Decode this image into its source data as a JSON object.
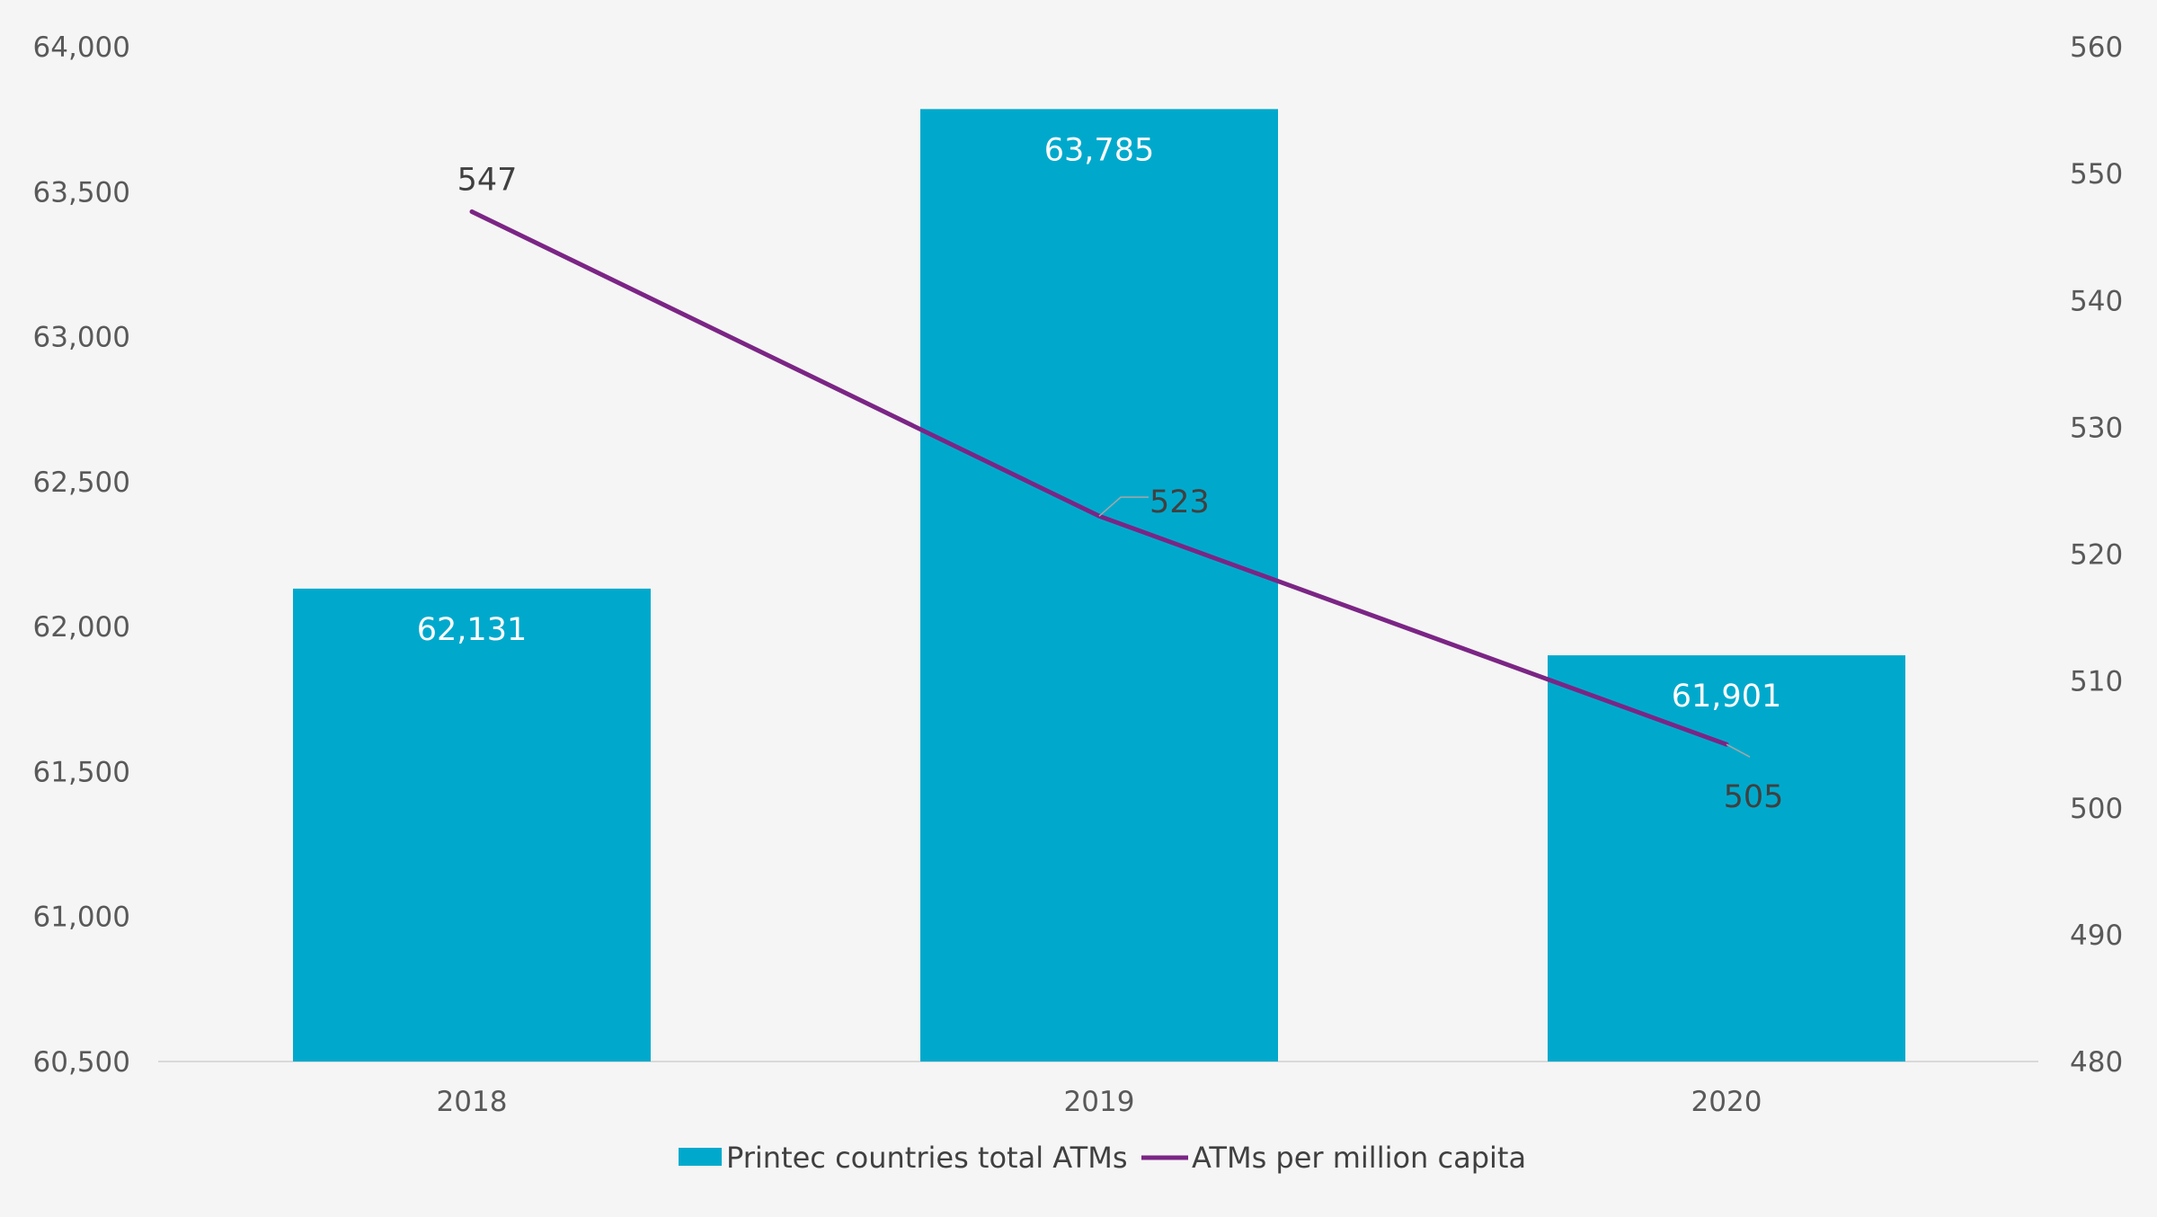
{
  "chart_data": {
    "type": "bar",
    "categories": [
      "2018",
      "2019",
      "2020"
    ],
    "series": [
      {
        "name": "Printec countries total ATMs",
        "type": "bar",
        "axis": "left",
        "values": [
          62131,
          63785,
          61901
        ],
        "labels": [
          "62,131",
          "63,785",
          "61,901"
        ],
        "color": "#00a9cc"
      },
      {
        "name": "ATMs per million capita",
        "type": "line",
        "axis": "right",
        "values": [
          547,
          523,
          505
        ],
        "labels": [
          "547",
          "523",
          "505"
        ],
        "color": "#7b2585"
      }
    ],
    "y_left": {
      "lim": [
        60500,
        64000
      ],
      "ticks": [
        60500,
        61000,
        61500,
        62000,
        62500,
        63000,
        63500,
        64000
      ],
      "tick_labels": [
        "60,500",
        "61,000",
        "61,500",
        "62,000",
        "62,500",
        "63,000",
        "63,500",
        "64,000"
      ]
    },
    "y_right": {
      "lim": [
        480,
        560
      ],
      "ticks": [
        480,
        490,
        500,
        510,
        520,
        530,
        540,
        550,
        560
      ],
      "tick_labels": [
        "480",
        "490",
        "500",
        "510",
        "520",
        "530",
        "540",
        "550",
        "560"
      ]
    },
    "grid": false,
    "legend": "bottom-center"
  }
}
